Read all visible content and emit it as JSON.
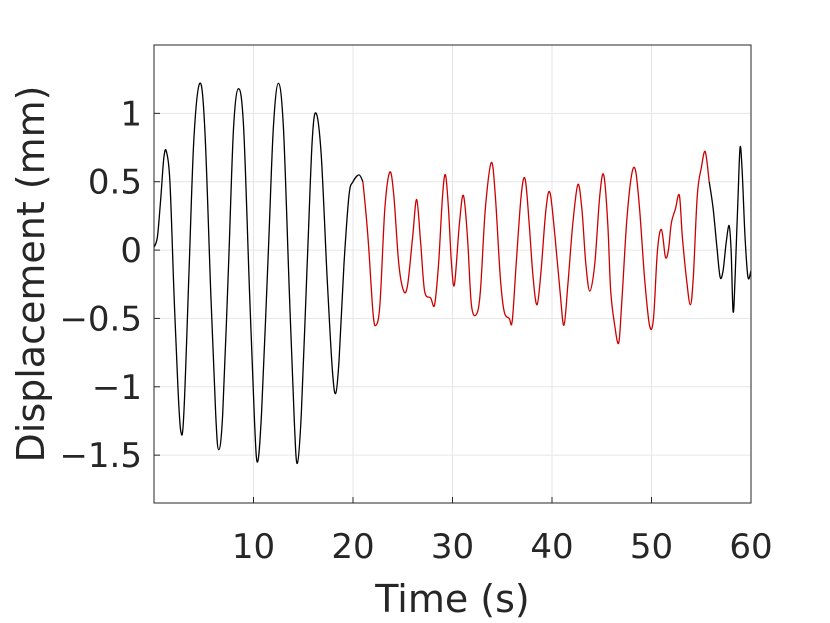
{
  "chart_data": {
    "type": "line",
    "title": "",
    "xlabel": "Time (s)",
    "ylabel": "Displacement (mm)",
    "xlim": [
      0,
      60
    ],
    "ylim": [
      -1.85,
      1.5
    ],
    "xticks": [
      10,
      20,
      30,
      40,
      50,
      60
    ],
    "xtick_labels": [
      "10",
      "20",
      "30",
      "40",
      "50",
      "60"
    ],
    "yticks": [
      -1.5,
      -1,
      -0.5,
      0,
      0.5,
      1
    ],
    "ytick_labels": [
      "−1.5",
      "−1",
      "−0.5",
      "0",
      "0.5",
      "1"
    ],
    "grid": true,
    "legend": "none",
    "series": [
      {
        "color": "#000000",
        "points": [
          [
            0,
            0.02
          ],
          [
            0.35,
            0.1
          ],
          [
            0.7,
            0.4
          ],
          [
            1.0,
            0.68
          ],
          [
            1.25,
            0.72
          ],
          [
            1.6,
            0.5
          ],
          [
            2.0,
            -0.3
          ],
          [
            2.4,
            -1.0
          ],
          [
            2.7,
            -1.33
          ],
          [
            3.0,
            -1.2
          ],
          [
            3.5,
            -0.2
          ],
          [
            4.0,
            0.8
          ],
          [
            4.6,
            1.22
          ],
          [
            5.1,
            0.9
          ],
          [
            5.7,
            -0.3
          ],
          [
            6.2,
            -1.2
          ],
          [
            6.5,
            -1.46
          ],
          [
            6.9,
            -1.2
          ],
          [
            7.5,
            -0.1
          ],
          [
            8.0,
            0.9
          ],
          [
            8.5,
            1.18
          ],
          [
            9.0,
            0.9
          ],
          [
            9.6,
            -0.3
          ],
          [
            10.1,
            -1.25
          ],
          [
            10.4,
            -1.55
          ],
          [
            10.8,
            -1.2
          ],
          [
            11.5,
            0.0
          ],
          [
            12.0,
            0.9
          ],
          [
            12.5,
            1.22
          ],
          [
            13.0,
            0.9
          ],
          [
            13.6,
            -0.3
          ],
          [
            14.1,
            -1.25
          ],
          [
            14.4,
            -1.56
          ],
          [
            14.8,
            -1.2
          ],
          [
            15.4,
            -0.1
          ],
          [
            15.9,
            0.8
          ],
          [
            16.3,
            1.0
          ],
          [
            16.8,
            0.7
          ],
          [
            17.4,
            -0.2
          ],
          [
            17.9,
            -0.85
          ],
          [
            18.25,
            -1.05
          ],
          [
            18.6,
            -0.8
          ],
          [
            19.1,
            -0.1
          ],
          [
            19.6,
            0.4
          ],
          [
            20.0,
            0.5
          ],
          [
            20.6,
            0.55
          ],
          [
            21.0,
            0.5
          ]
        ]
      },
      {
        "color": "#cc0000",
        "points": [
          [
            21.0,
            0.5
          ],
          [
            21.5,
            0.1
          ],
          [
            22.0,
            -0.45
          ],
          [
            22.3,
            -0.55
          ],
          [
            22.7,
            -0.4
          ],
          [
            23.2,
            0.3
          ],
          [
            23.7,
            0.57
          ],
          [
            24.1,
            0.4
          ],
          [
            24.6,
            -0.1
          ],
          [
            25.1,
            -0.3
          ],
          [
            25.5,
            -0.25
          ],
          [
            26.0,
            0.1
          ],
          [
            26.4,
            0.37
          ],
          [
            26.8,
            0.05
          ],
          [
            27.2,
            -0.3
          ],
          [
            27.8,
            -0.35
          ],
          [
            28.2,
            -0.4
          ],
          [
            28.6,
            -0.1
          ],
          [
            29.0,
            0.4
          ],
          [
            29.3,
            0.55
          ],
          [
            29.6,
            0.3
          ],
          [
            29.9,
            -0.1
          ],
          [
            30.2,
            -0.25
          ],
          [
            30.7,
            0.2
          ],
          [
            31.1,
            0.4
          ],
          [
            31.5,
            0.1
          ],
          [
            31.9,
            -0.4
          ],
          [
            32.4,
            -0.47
          ],
          [
            32.8,
            -0.3
          ],
          [
            33.3,
            0.3
          ],
          [
            33.9,
            0.64
          ],
          [
            34.3,
            0.4
          ],
          [
            34.8,
            -0.2
          ],
          [
            35.2,
            -0.45
          ],
          [
            35.7,
            -0.5
          ],
          [
            36.0,
            -0.52
          ],
          [
            36.4,
            -0.1
          ],
          [
            36.9,
            0.4
          ],
          [
            37.3,
            0.52
          ],
          [
            37.7,
            0.2
          ],
          [
            38.1,
            -0.2
          ],
          [
            38.5,
            -0.4
          ],
          [
            38.9,
            -0.15
          ],
          [
            39.4,
            0.3
          ],
          [
            39.8,
            0.42
          ],
          [
            40.3,
            0.1
          ],
          [
            40.8,
            -0.3
          ],
          [
            41.2,
            -0.55
          ],
          [
            41.6,
            -0.25
          ],
          [
            42.1,
            0.2
          ],
          [
            42.6,
            0.48
          ],
          [
            43.0,
            0.3
          ],
          [
            43.4,
            -0.1
          ],
          [
            43.8,
            -0.3
          ],
          [
            44.3,
            -0.1
          ],
          [
            44.8,
            0.4
          ],
          [
            45.2,
            0.55
          ],
          [
            45.6,
            0.2
          ],
          [
            45.9,
            -0.3
          ],
          [
            46.3,
            -0.55
          ],
          [
            46.7,
            -0.68
          ],
          [
            47.0,
            -0.4
          ],
          [
            47.5,
            0.2
          ],
          [
            48.0,
            0.55
          ],
          [
            48.4,
            0.58
          ],
          [
            48.8,
            0.3
          ],
          [
            49.3,
            -0.2
          ],
          [
            49.8,
            -0.55
          ],
          [
            50.2,
            -0.5
          ],
          [
            50.6,
            0.0
          ],
          [
            51.0,
            0.15
          ],
          [
            51.4,
            -0.05
          ],
          [
            51.7,
            0.0
          ],
          [
            52.0,
            0.2
          ],
          [
            52.4,
            0.3
          ],
          [
            52.8,
            0.4
          ],
          [
            53.1,
            0.1
          ],
          [
            53.5,
            -0.2
          ],
          [
            53.9,
            -0.4
          ],
          [
            54.2,
            -0.2
          ],
          [
            54.6,
            0.4
          ],
          [
            55.0,
            0.6
          ],
          [
            55.4,
            0.72
          ],
          [
            55.8,
            0.5
          ]
        ]
      },
      {
        "color": "#000000",
        "points": [
          [
            55.8,
            0.5
          ],
          [
            56.2,
            0.3
          ],
          [
            56.6,
            0.0
          ],
          [
            56.9,
            -0.2
          ],
          [
            57.2,
            -0.15
          ],
          [
            57.5,
            0.05
          ],
          [
            57.8,
            0.18
          ],
          [
            58.0,
            0.0
          ],
          [
            58.2,
            -0.45
          ],
          [
            58.4,
            -0.2
          ],
          [
            58.7,
            0.4
          ],
          [
            58.9,
            0.75
          ],
          [
            59.1,
            0.6
          ],
          [
            59.4,
            0.1
          ],
          [
            59.7,
            -0.2
          ],
          [
            60.0,
            -0.15
          ]
        ]
      }
    ]
  }
}
